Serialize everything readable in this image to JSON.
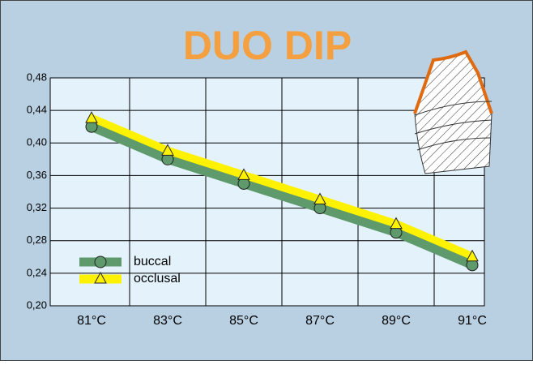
{
  "chart_data": {
    "type": "line",
    "title": "DUO DIP",
    "categories": [
      "81°C",
      "83°C",
      "85°C",
      "87°C",
      "89°C",
      "91°C"
    ],
    "series": [
      {
        "name": "buccal",
        "color": "#5e9a6c",
        "marker": "circle",
        "values": [
          0.42,
          0.38,
          0.35,
          0.32,
          0.29,
          0.25
        ]
      },
      {
        "name": "occlusal",
        "color": "#fff200",
        "marker": "triangle",
        "values": [
          0.43,
          0.39,
          0.36,
          0.33,
          0.3,
          0.26
        ]
      }
    ],
    "ylim": [
      0.2,
      0.48
    ],
    "yticks": [
      {
        "value": 0.2,
        "label": "0,20"
      },
      {
        "value": 0.24,
        "label": "0,24"
      },
      {
        "value": 0.28,
        "label": "0,28"
      },
      {
        "value": 0.32,
        "label": "0,32"
      },
      {
        "value": 0.36,
        "label": "0,36"
      },
      {
        "value": 0.4,
        "label": "0,40"
      },
      {
        "value": 0.44,
        "label": "0,44"
      },
      {
        "value": 0.48,
        "label": "0,48"
      }
    ],
    "grid": true,
    "legend": "lower left"
  }
}
